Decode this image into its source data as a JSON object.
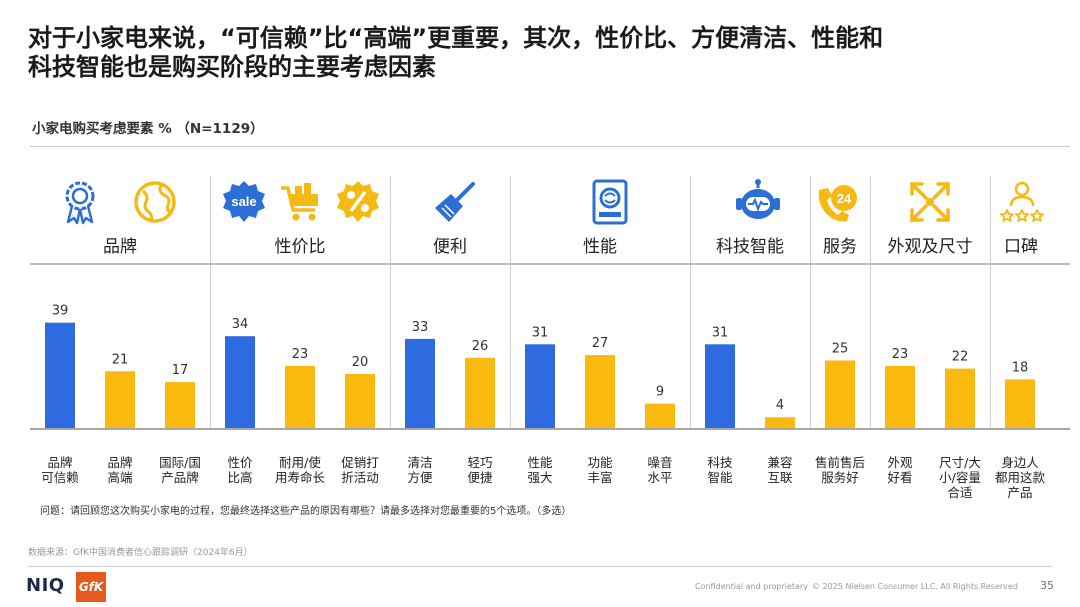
{
  "title": "对于小家电来说，“可信赖”比“高端”更重要，其次，性价比、方便清洁、性能和\n科技智能也是购买阶段的主要考虑因素",
  "subtitle": "小家电购买考虑要素 %  （N=1129）",
  "groups": [
    {
      "label": "品牌",
      "icons": [
        "award-ribbon-icon",
        "globe-icon"
      ]
    },
    {
      "label": "性价比",
      "icons": [
        "sale-tag-icon",
        "shopping-cart-icon",
        "percent-badge-icon"
      ]
    },
    {
      "label": "便利",
      "icons": [
        "cleaning-brush-icon"
      ]
    },
    {
      "label": "性能",
      "icons": [
        "appliance-device-icon"
      ]
    },
    {
      "label": "科技智能",
      "icons": [
        "smart-robot-icon"
      ]
    },
    {
      "label": "服务",
      "icons": [
        "service-phone-24-icon"
      ]
    },
    {
      "label": "外观及尺寸",
      "icons": [
        "expand-arrows-icon"
      ]
    },
    {
      "label": "口碑",
      "icons": [
        "user-rating-stars-icon"
      ]
    }
  ],
  "chart_data": {
    "type": "bar",
    "title": "小家电购买考虑要素 %  （N=1129）",
    "categories": [
      "品牌\n可信赖",
      "品牌\n高端",
      "国际/国\n产品牌",
      "性价\n比高",
      "耐用/使\n用寿命长",
      "促销打\n折活动",
      "清洁\n方便",
      "轻巧\n便捷",
      "性能\n强大",
      "功能\n丰富",
      "噪音\n水平",
      "科技\n智能",
      "兼容\n互联",
      "售前售后\n服务好",
      "外观\n好看",
      "尺寸/大\n小/容量\n合适",
      "身边人\n都用这款\n产品"
    ],
    "values": [
      39,
      21,
      17,
      34,
      23,
      20,
      33,
      26,
      31,
      27,
      9,
      31,
      4,
      25,
      23,
      22,
      18
    ],
    "bar_colors": [
      "#2f6be0",
      "#f9b90f",
      "#f9b90f",
      "#2f6be0",
      "#f9b90f",
      "#f9b90f",
      "#2f6be0",
      "#f9b90f",
      "#2f6be0",
      "#f9b90f",
      "#f9b90f",
      "#2f6be0",
      "#f9b90f",
      "#f9b90f",
      "#f9b90f",
      "#f9b90f",
      "#f9b90f"
    ],
    "group_of_category": [
      0,
      0,
      0,
      1,
      1,
      1,
      2,
      2,
      3,
      3,
      3,
      4,
      4,
      5,
      6,
      6,
      7
    ],
    "ylim": [
      0,
      45
    ],
    "grid": false,
    "legend": "none"
  },
  "question": "问题：请回顾您这次购买小家电的过程，您最终选择这些产品的原因有哪些？请最多选择对您最重要的5个选项。（多选）",
  "source": "数据来源：GfK中国消费者信心跟踪调研（2024年6月）",
  "footer": {
    "niq_logo": "NIQ",
    "gfk_logo": "GfK",
    "confidential": "Confidential and proprietary",
    "copyright": "© 2025 Nielsen Consumer LLC. All Rights Reserved",
    "page_number": "35"
  },
  "colors": {
    "accent_blue": "#2f6be0",
    "bar_yellow": "#f9b90f",
    "icon_blue": "#2b6fd6",
    "icon_yellow": "#f5b914",
    "gfk_orange": "#e55a1f"
  }
}
